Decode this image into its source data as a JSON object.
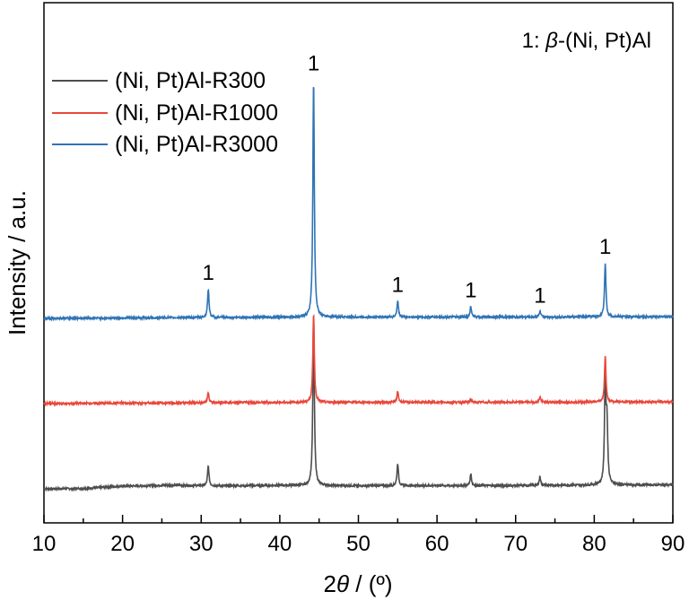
{
  "chart_data": {
    "type": "line",
    "xlabel_prefix": "2",
    "xlabel_symbol": "θ",
    "xlabel_suffix": " / (º)",
    "ylabel": "Intensity / a.u.",
    "xlim": [
      10,
      90
    ],
    "x_ticks": [
      "10",
      "20",
      "30",
      "40",
      "50",
      "60",
      "70",
      "80",
      "90"
    ],
    "grid": false,
    "legend_position": "top-left",
    "annotation": {
      "prefix": "1: ",
      "symbol": "β",
      "suffix": "-(Ni, Pt)Al"
    },
    "peak_marker_text": "1",
    "peaks": [
      30.9,
      44.3,
      55.0,
      64.3,
      73.1,
      81.4
    ],
    "series": [
      {
        "name": "(Ni, Pt)Al-R300",
        "color": "#4d4d4d",
        "baseline_points": [
          [
            10,
            0.0
          ],
          [
            15,
            0.3
          ],
          [
            20,
            3.0
          ],
          [
            26,
            4.0
          ],
          [
            32,
            3.2
          ],
          [
            40,
            3.8
          ],
          [
            50,
            3.4
          ],
          [
            60,
            3.6
          ],
          [
            70,
            3.6
          ],
          [
            80,
            4.2
          ],
          [
            90,
            4.4
          ]
        ],
        "peak_heights": [
          22,
          190,
          25,
          13,
          10,
          115
        ],
        "peak_shoulder_height": 65,
        "peak_label_offset": null
      },
      {
        "name": "(Ni, Pt)Al-R1000",
        "color": "#e8483b",
        "baseline_points": [
          [
            10,
            95.0
          ],
          [
            30,
            96.0
          ],
          [
            50,
            96.5
          ],
          [
            70,
            96.5
          ],
          [
            90,
            97.0
          ]
        ],
        "peak_heights": [
          12,
          100,
          12,
          3,
          6,
          52
        ],
        "peak_shoulder_height": 0,
        "peak_label_offset": null
      },
      {
        "name": "(Ni, Pt)Al-R3000",
        "color": "#2f74b5",
        "baseline_points": [
          [
            10,
            190.0
          ],
          [
            30,
            191.0
          ],
          [
            50,
            191.5
          ],
          [
            70,
            191.5
          ],
          [
            90,
            192.0
          ]
        ],
        "peak_heights": [
          32,
          265,
          18,
          12,
          6,
          60
        ],
        "peak_shoulder_height": 0,
        "peak_label_offset": 12
      }
    ]
  }
}
